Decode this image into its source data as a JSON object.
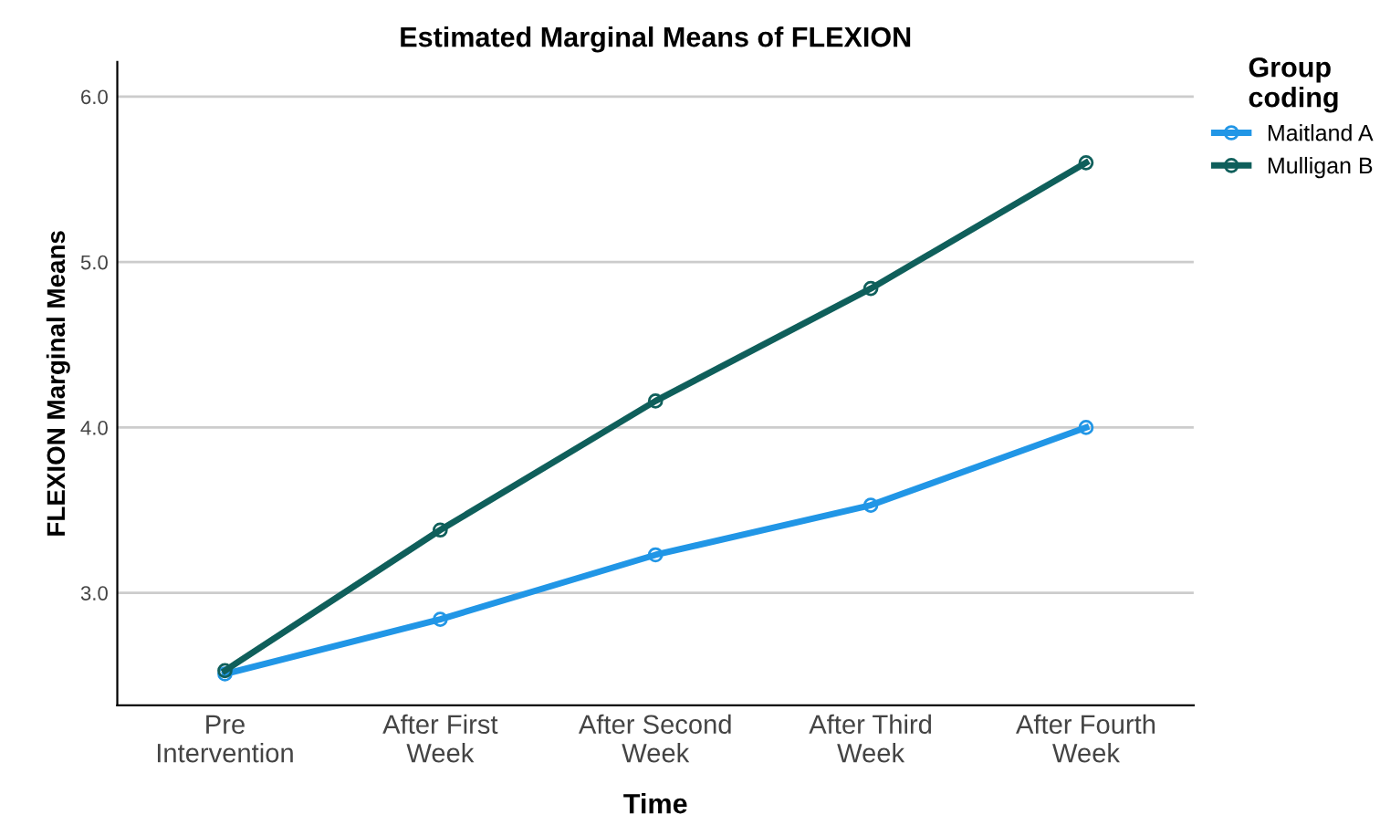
{
  "chart_data": {
    "type": "line",
    "title": "Estimated Marginal Means of FLEXION",
    "xlabel": "Time",
    "ylabel": "FLEXION Marginal Means",
    "legend_title": "Group\ncoding",
    "categories": [
      "Pre\nIntervention",
      "After First\nWeek",
      "After Second\nWeek",
      "After Third\nWeek",
      "After Fourth\nWeek"
    ],
    "series": [
      {
        "name": "Maitland A",
        "color": "#2196e6",
        "values": [
          2.51,
          2.84,
          3.23,
          3.53,
          4.0
        ]
      },
      {
        "name": "Mulligan B",
        "color": "#0f5f5b",
        "values": [
          2.53,
          3.38,
          4.16,
          4.84,
          5.6
        ]
      }
    ],
    "ylim": [
      2.32,
      6.21
    ],
    "yticks": [
      {
        "value": 3,
        "label": "3.0"
      },
      {
        "value": 4,
        "label": "4.0"
      },
      {
        "value": 5,
        "label": "5.0"
      },
      {
        "value": 6,
        "label": "6.0"
      }
    ],
    "grid": "y",
    "legend": "top right",
    "marker": "circle",
    "line_style": "solid"
  }
}
